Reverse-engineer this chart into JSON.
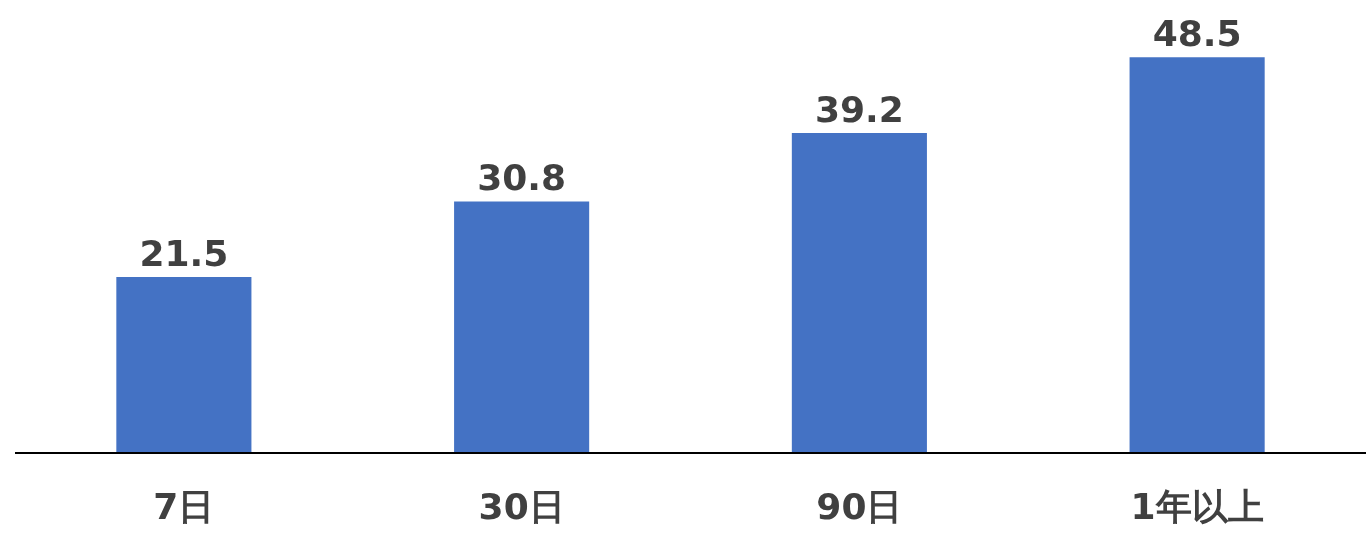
{
  "chart_data": {
    "type": "bar",
    "categories": [
      "7日",
      "30日",
      "90日",
      "1年以上"
    ],
    "values": [
      21.5,
      30.8,
      39.2,
      48.5
    ],
    "color": "#4472c4",
    "data_labels": true,
    "grid": false
  }
}
